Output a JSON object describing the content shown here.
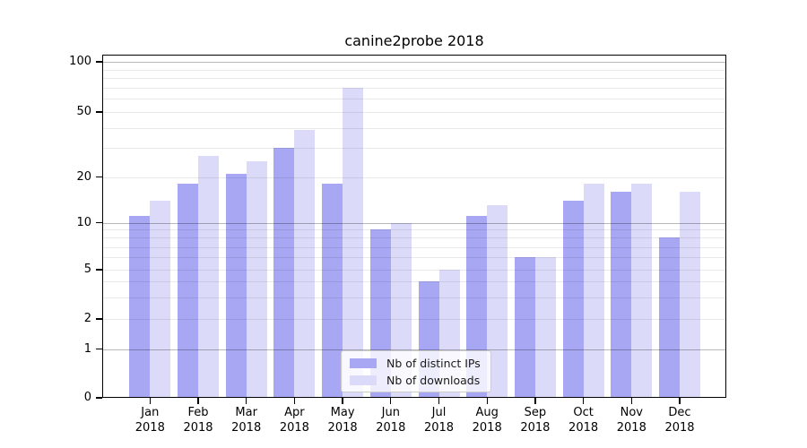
{
  "title": "canine2probe 2018",
  "chart_data": {
    "type": "bar",
    "title": "canine2probe 2018",
    "categories": [
      "Jan",
      "Feb",
      "Mar",
      "Apr",
      "May",
      "Jun",
      "Jul",
      "Aug",
      "Sep",
      "Oct",
      "Nov",
      "Dec"
    ],
    "category_year": "2018",
    "series": [
      {
        "name": "Nb of distinct IPs",
        "color": "#a7a7f3",
        "values": [
          11,
          18,
          21,
          30,
          18,
          9,
          4,
          11,
          6,
          14,
          16,
          8
        ]
      },
      {
        "name": "Nb of downloads",
        "color": "#dbdbf9",
        "values": [
          14,
          27,
          25,
          39,
          70,
          10,
          5,
          13,
          6,
          18,
          18,
          16
        ]
      }
    ],
    "xlabel": "",
    "ylabel": "",
    "yscale": "symlog",
    "ylim": [
      0,
      110
    ],
    "yticks": [
      0,
      1,
      2,
      5,
      10,
      20,
      50,
      100
    ],
    "major_gridlines": [
      1,
      10,
      100
    ],
    "minor_gridlines": [
      2,
      3,
      4,
      5,
      6,
      7,
      8,
      9,
      20,
      30,
      40,
      50,
      60,
      70,
      80,
      90
    ],
    "grid": true,
    "legend_position": "lower center"
  },
  "colors": {
    "bar_distinct_ips": "#a7a7f3",
    "bar_downloads": "#dbdbf9",
    "major_grid": "#b8b8b8",
    "minor_grid": "#e9e9e9",
    "axis": "#000000",
    "background": "#ffffff",
    "text": "#1a1a1a"
  }
}
